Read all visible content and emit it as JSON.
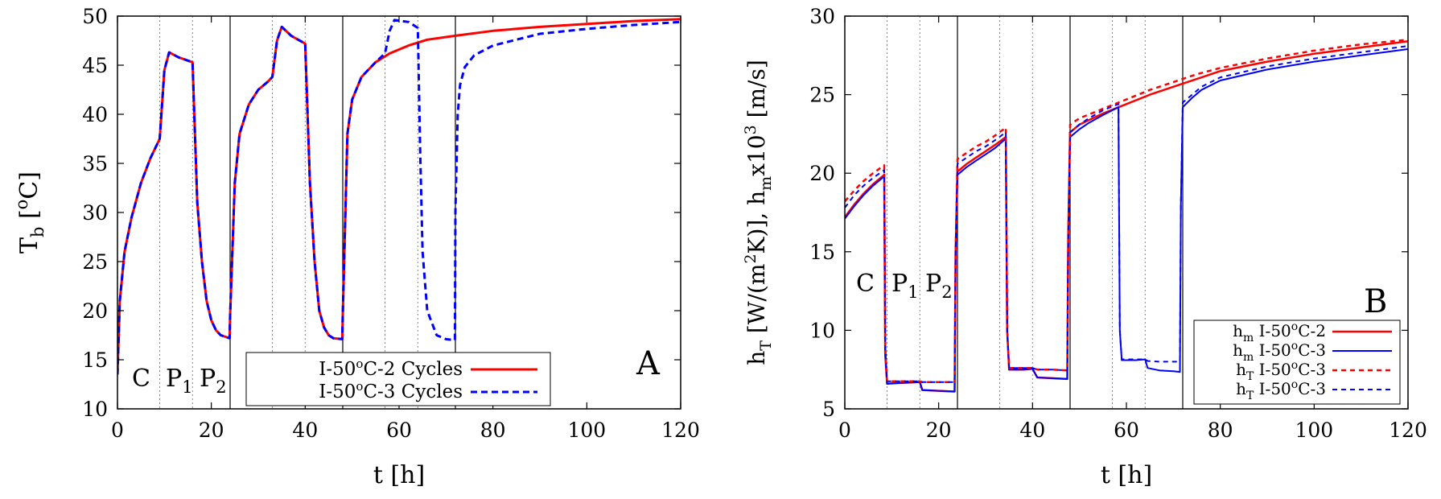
{
  "chart_data": [
    {
      "type": "line",
      "panel_label": "A",
      "title": "",
      "xlabel": "t [h]",
      "ylabel": {
        "main": "T",
        "sub": "b",
        "rest": " [",
        "sup": "o",
        "unit": "C]"
      },
      "xlim": [
        0,
        120
      ],
      "ylim": [
        10,
        50
      ],
      "xticks": [
        0,
        20,
        40,
        60,
        80,
        100,
        120
      ],
      "yticks": [
        10,
        15,
        20,
        25,
        30,
        35,
        40,
        45,
        50
      ],
      "cycle_lines": [
        24,
        48,
        72
      ],
      "phase_lines": [
        9,
        16,
        33,
        40,
        57,
        64
      ],
      "phase_labels": [
        {
          "main": "C",
          "sub": ""
        },
        {
          "main": "P",
          "sub": "1"
        },
        {
          "main": "P",
          "sub": "2"
        }
      ],
      "legend_position": "bottom-center",
      "series": [
        {
          "name": "I-50oC-2 Cycles",
          "legend": {
            "pre": "I-50",
            "sup": "o",
            "post": "C-2 Cycles"
          },
          "color": "#ff0000",
          "style": "solid",
          "x": [
            0,
            0.5,
            1.5,
            3,
            5,
            7,
            9,
            10,
            11,
            13,
            16,
            17,
            18,
            19,
            20,
            21,
            22,
            23.9,
            24,
            25,
            26,
            28,
            30,
            32,
            33,
            34,
            35,
            37,
            40,
            41,
            42,
            43,
            44,
            45,
            46,
            47.9,
            48,
            49,
            50,
            52,
            55,
            58,
            62,
            66,
            72,
            80,
            90,
            100,
            110,
            120
          ],
          "values": [
            13.5,
            21,
            26,
            29.5,
            33,
            35.5,
            37.5,
            44.5,
            46.3,
            45.8,
            45.3,
            31,
            25,
            21,
            19,
            18,
            17.5,
            17.2,
            19.5,
            33,
            38,
            41,
            42.5,
            43.3,
            43.8,
            47.5,
            48.9,
            48,
            47.2,
            33,
            25,
            20,
            18.3,
            17.5,
            17.2,
            17.1,
            19.5,
            38,
            41.5,
            43.8,
            45.3,
            46.2,
            47,
            47.6,
            48,
            48.5,
            48.9,
            49.2,
            49.5,
            49.7
          ]
        },
        {
          "name": "I-50oC-3 Cycles",
          "legend": {
            "pre": "I-50",
            "sup": "o",
            "post": "C-3 Cycles"
          },
          "color": "#0000ff",
          "style": "dashed",
          "x": [
            0,
            0.5,
            1.5,
            3,
            5,
            7,
            9,
            10,
            11,
            13,
            16,
            17,
            18,
            19,
            20,
            21,
            22,
            23.9,
            24,
            25,
            26,
            28,
            30,
            32,
            33,
            34,
            35,
            37,
            40,
            41,
            42,
            43,
            44,
            45,
            46,
            47.9,
            48,
            49,
            50,
            52,
            55,
            57,
            58,
            59,
            62,
            64,
            64.5,
            65,
            66,
            68,
            70,
            71.9,
            72,
            72.5,
            73,
            74,
            76,
            80,
            90,
            100,
            110,
            120
          ],
          "values": [
            13.5,
            21,
            26,
            29.5,
            33,
            35.5,
            37.5,
            44.5,
            46.3,
            45.8,
            45.3,
            31,
            25,
            21,
            19,
            18,
            17.5,
            17.2,
            19.5,
            33,
            38,
            41,
            42.5,
            43.3,
            43.8,
            47.5,
            48.9,
            48,
            47.2,
            33,
            25,
            20,
            18.3,
            17.5,
            17.2,
            17.1,
            19.5,
            38,
            41.5,
            43.8,
            45.3,
            46.2,
            48.5,
            49.6,
            49.4,
            48.8,
            36,
            26,
            20,
            17.5,
            17.1,
            17.0,
            30,
            40,
            43,
            44.8,
            46,
            47,
            48.2,
            48.7,
            49.1,
            49.4
          ]
        }
      ]
    },
    {
      "type": "line",
      "panel_label": "B",
      "title": "",
      "xlabel": "t [h]",
      "ylabel": {
        "a": "h",
        "a_sub": "T",
        "b": " [W/(m",
        "b_sup": "2",
        "c": "K)], h",
        "c_sub": "m",
        "d": "x10",
        "d_sup": "3",
        "e": " [m/s]"
      },
      "xlim": [
        0,
        120
      ],
      "ylim": [
        5,
        30
      ],
      "xticks": [
        0,
        20,
        40,
        60,
        80,
        100,
        120
      ],
      "yticks": [
        5,
        10,
        15,
        20,
        25,
        30
      ],
      "cycle_lines": [
        24,
        48,
        72
      ],
      "phase_lines": [
        9,
        16,
        33,
        40,
        57,
        64
      ],
      "phase_labels": [
        {
          "main": "C",
          "sub": ""
        },
        {
          "main": "P",
          "sub": "1"
        },
        {
          "main": "P",
          "sub": "2"
        }
      ],
      "legend_position": "bottom-right",
      "series": [
        {
          "name": "hm I-50oC-2",
          "legend": {
            "sym": "h",
            "sub": "m",
            "pre": " I-50",
            "sup": "o",
            "post": "C-2"
          },
          "color": "#ff0000",
          "style": "solid",
          "x": [
            0,
            2,
            4,
            6,
            8.4,
            8.6,
            9,
            12,
            16,
            16.5,
            20,
            23.4,
            23.6,
            24,
            26,
            28,
            30,
            32,
            34.3,
            34.6,
            35,
            38,
            40,
            41,
            44,
            47.4,
            47.6,
            48,
            50,
            55,
            60,
            65,
            70,
            75,
            80,
            90,
            100,
            110,
            120
          ],
          "values": [
            17.2,
            18.0,
            18.7,
            19.3,
            19.9,
            8.5,
            6.6,
            6.65,
            6.7,
            6.2,
            6.15,
            6.1,
            15,
            20.1,
            20.6,
            21.0,
            21.4,
            21.8,
            22.3,
            10,
            7.5,
            7.5,
            7.55,
            7.0,
            6.95,
            6.9,
            16,
            22.6,
            23.1,
            23.8,
            24.4,
            25.0,
            25.5,
            26.0,
            26.5,
            27.1,
            27.6,
            28.0,
            28.4
          ]
        },
        {
          "name": "hm I-50oC-3",
          "legend": {
            "sym": "h",
            "sub": "m",
            "pre": " I-50",
            "sup": "o",
            "post": "C-3"
          },
          "color": "#0000ff",
          "style": "solid",
          "x": [
            0,
            2,
            4,
            6,
            8.4,
            8.6,
            9,
            12,
            16,
            16.5,
            20,
            23.4,
            23.6,
            24,
            26,
            28,
            30,
            32,
            34.3,
            34.6,
            35,
            38,
            40,
            41,
            44,
            47.4,
            47.6,
            48,
            50,
            52,
            55,
            58.3,
            58.6,
            59,
            62,
            64,
            64.5,
            67,
            70,
            71.4,
            71.6,
            72,
            74,
            76,
            80,
            90,
            100,
            110,
            120
          ],
          "values": [
            17.1,
            17.9,
            18.6,
            19.2,
            19.8,
            8.5,
            6.6,
            6.65,
            6.7,
            6.2,
            6.15,
            6.1,
            15,
            19.9,
            20.4,
            20.8,
            21.2,
            21.6,
            22.2,
            10,
            7.5,
            7.5,
            7.55,
            7.0,
            6.95,
            6.9,
            16,
            22.3,
            22.8,
            23.2,
            23.7,
            24.2,
            10,
            8.1,
            8.1,
            8.15,
            7.6,
            7.45,
            7.4,
            7.35,
            18,
            24.2,
            24.8,
            25.3,
            25.9,
            26.6,
            27.1,
            27.5,
            27.9
          ]
        },
        {
          "name": "hT I-50oC-3",
          "legend": {
            "sym": "h",
            "sub": "T",
            "pre": " I-50",
            "sup": "o",
            "post": "C-3"
          },
          "color": "#ff0000",
          "style": "dashed",
          "x": [
            0,
            2,
            4,
            6,
            8.4,
            8.6,
            9,
            12,
            16,
            16.5,
            20,
            23.4,
            23.6,
            24,
            26,
            28,
            30,
            32,
            34.3,
            34.6,
            35,
            38,
            40,
            41,
            44,
            47.4,
            47.6,
            48,
            50,
            55,
            60,
            65,
            70,
            75,
            80,
            90,
            100,
            110,
            120
          ],
          "values": [
            18.2,
            18.9,
            19.5,
            20.0,
            20.5,
            9,
            6.75,
            6.75,
            6.75,
            6.7,
            6.7,
            6.7,
            15,
            20.9,
            21.3,
            21.7,
            22.0,
            22.4,
            22.9,
            10,
            7.6,
            7.6,
            7.6,
            7.5,
            7.5,
            7.45,
            16,
            23.1,
            23.5,
            24.1,
            24.7,
            25.3,
            25.8,
            26.3,
            26.7,
            27.3,
            27.8,
            28.2,
            28.5
          ]
        },
        {
          "name": "hT I-50oC-3",
          "legend": {
            "sym": "h",
            "sub": "T",
            "pre": " I-50",
            "sup": "o",
            "post": "C-3"
          },
          "color": "#0000ff",
          "style": "dashed",
          "x": [
            0,
            2,
            4,
            6,
            8.4,
            8.6,
            9,
            12,
            16,
            16.5,
            20,
            23.4,
            23.6,
            24,
            26,
            28,
            30,
            32,
            34.3,
            34.6,
            35,
            38,
            40,
            41,
            44,
            47.4,
            47.6,
            48,
            50,
            52,
            55,
            58.3,
            58.6,
            59,
            62,
            64,
            64.5,
            67,
            70,
            71.4,
            71.6,
            72,
            74,
            76,
            80,
            90,
            100,
            110,
            120
          ],
          "values": [
            17.8,
            18.6,
            19.2,
            19.7,
            20.2,
            9,
            6.75,
            6.75,
            6.75,
            6.7,
            6.7,
            6.7,
            15,
            20.6,
            21.0,
            21.4,
            21.7,
            22.1,
            22.6,
            10,
            7.6,
            7.6,
            7.6,
            7.5,
            7.5,
            7.45,
            16,
            22.6,
            23.1,
            23.5,
            24.0,
            24.4,
            10,
            8.15,
            8.15,
            8.15,
            8.05,
            8.0,
            8.0,
            8.0,
            18,
            24.5,
            25.0,
            25.5,
            26.1,
            26.8,
            27.3,
            27.7,
            28.1
          ]
        }
      ]
    }
  ]
}
